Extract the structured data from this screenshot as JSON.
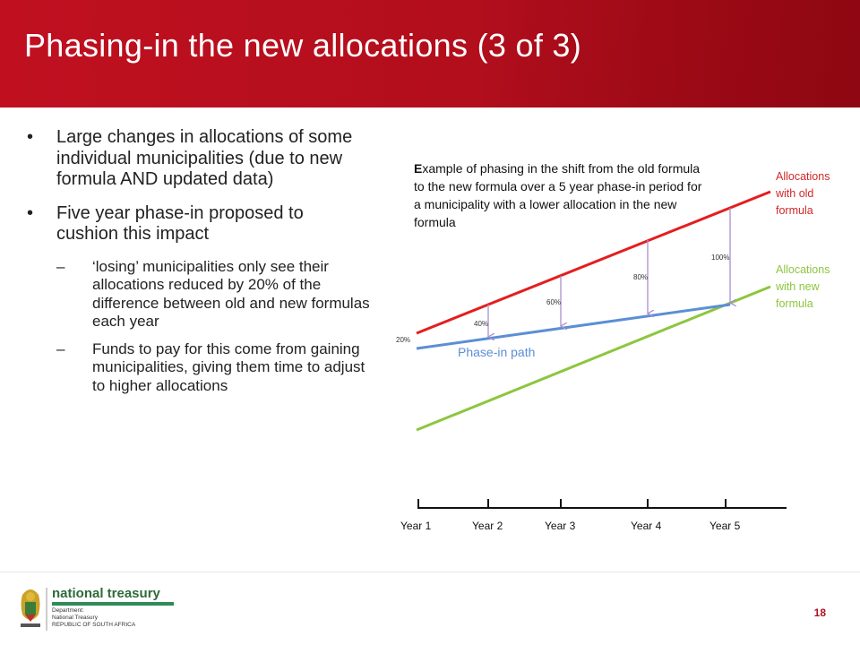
{
  "slide": {
    "title": "Phasing-in the new allocations (3 of 3)",
    "page_number": "18"
  },
  "bullets": [
    {
      "text": "Large changes in allocations of some individual municipalities (due to new formula AND updated data)"
    },
    {
      "text": "Five year phase-in proposed to cushion this impact"
    }
  ],
  "sub_bullets": [
    {
      "dash": "–",
      "text": "‘losing’ municipalities only see their allocations reduced by 20% of the difference between old and new formulas each year"
    },
    {
      "dash": "–",
      "text": "Funds to pay for this come from gaining municipalities, giving them time to adjust to higher allocations"
    }
  ],
  "diagram": {
    "annotation": [
      "Example of phasing in the shift from the old formula",
      "to the new formula over a 5 year phase-in period for",
      "a municipality with a lower allocation in the new",
      "formula"
    ],
    "old_label": [
      "Allocations",
      "with old",
      "formula"
    ],
    "new_label": [
      "Allocations",
      "with new",
      "formula"
    ],
    "path_label": "Phase-in path",
    "percent_labels": [
      "20%",
      "40%",
      "60%",
      "80%",
      "100%"
    ],
    "years": [
      "Year 1",
      "Year 2",
      "Year 3",
      "Year 4",
      "Year 5"
    ],
    "colors": {
      "old": "#e41e1e",
      "new": "#8cc63f",
      "path": "#5b8fd4",
      "arrows": "#a98fcf",
      "labels": "#d0282a",
      "labels_new": "#8cc63f"
    }
  },
  "footer": {
    "logo_name": "national treasury",
    "logo_lines": [
      "Department:",
      "National Treasury",
      "REPUBLIC OF SOUTH AFRICA"
    ]
  }
}
